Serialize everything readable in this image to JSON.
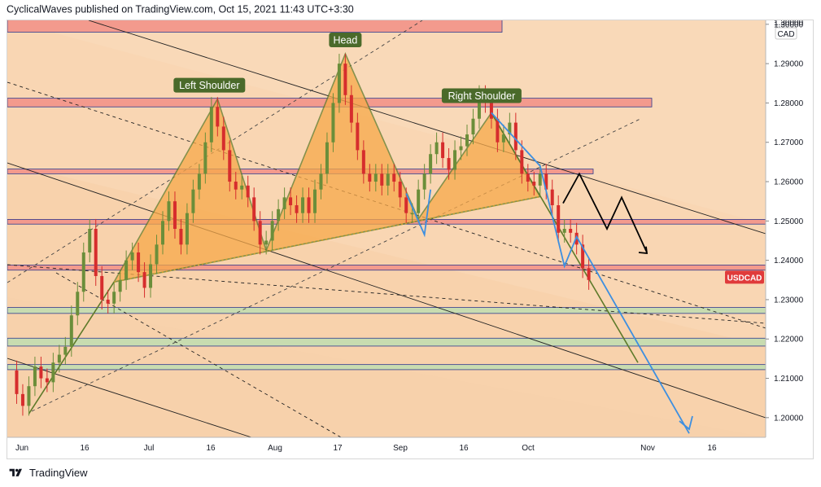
{
  "header": {
    "text": "CyclicalWaves published on TradingView.com, Oct 15, 2021 11:43 UTC+3:30"
  },
  "footer": {
    "brand": "TradingView",
    "logo_icon": "tradingview-logo-icon"
  },
  "colors": {
    "background": "#f9d9b8",
    "resistance_zone": "#f39a8d",
    "support_zone": "#c8dcb0",
    "pattern_fill": "#f7a94a",
    "pattern_stroke": "#5e7a2a",
    "label_bg": "#4a6a2a",
    "candle_up": "#6b8e3a",
    "candle_down": "#d62d2d",
    "projection_blue": "#3d8fe0",
    "projection_black": "#000000",
    "price_tag": "#e03b3b"
  },
  "chart_data": {
    "type": "candlestick",
    "symbol": "USDCAD",
    "currency": "CAD",
    "x_ticks": [
      "Jun",
      "16",
      "Jul",
      "16",
      "Aug",
      "17",
      "Sep",
      "16",
      "Oct",
      "Nov",
      "16"
    ],
    "y_ticks": [
      "1.20000",
      "1.21000",
      "1.22000",
      "1.23000",
      "1.24000",
      "1.25000",
      "1.26000",
      "1.27000",
      "1.28000",
      "1.29000",
      "1.30000"
    ],
    "ylim": [
      1.195,
      1.301
    ],
    "last_price_label": "USDCAD",
    "pattern": {
      "name": "Head and Shoulders",
      "labels": [
        "Left Shoulder",
        "Head",
        "Right Shoulder"
      ]
    },
    "resistance_zones": [
      [
        1.298,
        1.303
      ],
      [
        1.279,
        1.2812
      ],
      [
        1.262,
        1.2632
      ],
      [
        1.2492,
        1.2504
      ],
      [
        1.2375,
        1.2388
      ]
    ],
    "support_zones": [
      [
        1.2265,
        1.228
      ],
      [
        1.2182,
        1.2202
      ],
      [
        1.2122,
        1.2135
      ]
    ],
    "candle_path": [
      [
        1,
        1.212
      ],
      [
        2,
        1.206
      ],
      [
        3,
        1.203
      ],
      [
        4,
        1.208
      ],
      [
        5,
        1.213
      ],
      [
        6,
        1.21
      ],
      [
        7,
        1.209
      ],
      [
        8,
        1.214
      ],
      [
        9,
        1.216
      ],
      [
        10,
        1.218
      ],
      [
        11,
        1.226
      ],
      [
        12,
        1.232
      ],
      [
        13,
        1.242
      ],
      [
        14,
        1.248
      ],
      [
        15,
        1.236
      ],
      [
        16,
        1.23
      ],
      [
        17,
        1.229
      ],
      [
        18,
        1.232
      ],
      [
        19,
        1.235
      ],
      [
        20,
        1.24
      ],
      [
        21,
        1.242
      ],
      [
        22,
        1.237
      ],
      [
        23,
        1.233
      ],
      [
        24,
        1.239
      ],
      [
        25,
        1.244
      ],
      [
        26,
        1.25
      ],
      [
        27,
        1.255
      ],
      [
        28,
        1.248
      ],
      [
        29,
        1.244
      ],
      [
        30,
        1.252
      ],
      [
        31,
        1.258
      ],
      [
        32,
        1.262
      ],
      [
        33,
        1.27
      ],
      [
        34,
        1.279
      ],
      [
        35,
        1.274
      ],
      [
        36,
        1.268
      ],
      [
        37,
        1.26
      ],
      [
        38,
        1.258
      ],
      [
        39,
        1.259
      ],
      [
        40,
        1.256
      ],
      [
        41,
        1.25
      ],
      [
        42,
        1.244
      ],
      [
        43,
        1.245
      ],
      [
        44,
        1.25
      ],
      [
        45,
        1.253
      ],
      [
        46,
        1.256
      ],
      [
        47,
        1.254
      ],
      [
        48,
        1.252
      ],
      [
        49,
        1.256
      ],
      [
        50,
        1.252
      ],
      [
        51,
        1.258
      ],
      [
        52,
        1.262
      ],
      [
        53,
        1.27
      ],
      [
        54,
        1.28
      ],
      [
        55,
        1.29
      ],
      [
        56,
        1.282
      ],
      [
        57,
        1.275
      ],
      [
        58,
        1.268
      ],
      [
        59,
        1.262
      ],
      [
        60,
        1.26
      ],
      [
        61,
        1.262
      ],
      [
        62,
        1.259
      ],
      [
        63,
        1.262
      ],
      [
        64,
        1.26
      ],
      [
        65,
        1.256
      ],
      [
        66,
        1.252
      ],
      [
        67,
        1.252
      ],
      [
        68,
        1.258
      ],
      [
        69,
        1.262
      ],
      [
        70,
        1.267
      ],
      [
        71,
        1.27
      ],
      [
        72,
        1.266
      ],
      [
        73,
        1.263
      ],
      [
        74,
        1.268
      ],
      [
        75,
        1.269
      ],
      [
        76,
        1.272
      ],
      [
        77,
        1.276
      ],
      [
        78,
        1.282
      ],
      [
        79,
        1.28
      ],
      [
        80,
        1.276
      ],
      [
        81,
        1.27
      ],
      [
        82,
        1.272
      ],
      [
        83,
        1.275
      ],
      [
        84,
        1.268
      ],
      [
        85,
        1.262
      ],
      [
        86,
        1.26
      ],
      [
        87,
        1.259
      ],
      [
        88,
        1.262
      ],
      [
        89,
        1.258
      ],
      [
        90,
        1.254
      ],
      [
        91,
        1.247
      ],
      [
        92,
        1.248
      ],
      [
        93,
        1.247
      ],
      [
        94,
        1.244
      ],
      [
        95,
        1.238
      ],
      [
        96,
        1.235
      ]
    ]
  }
}
